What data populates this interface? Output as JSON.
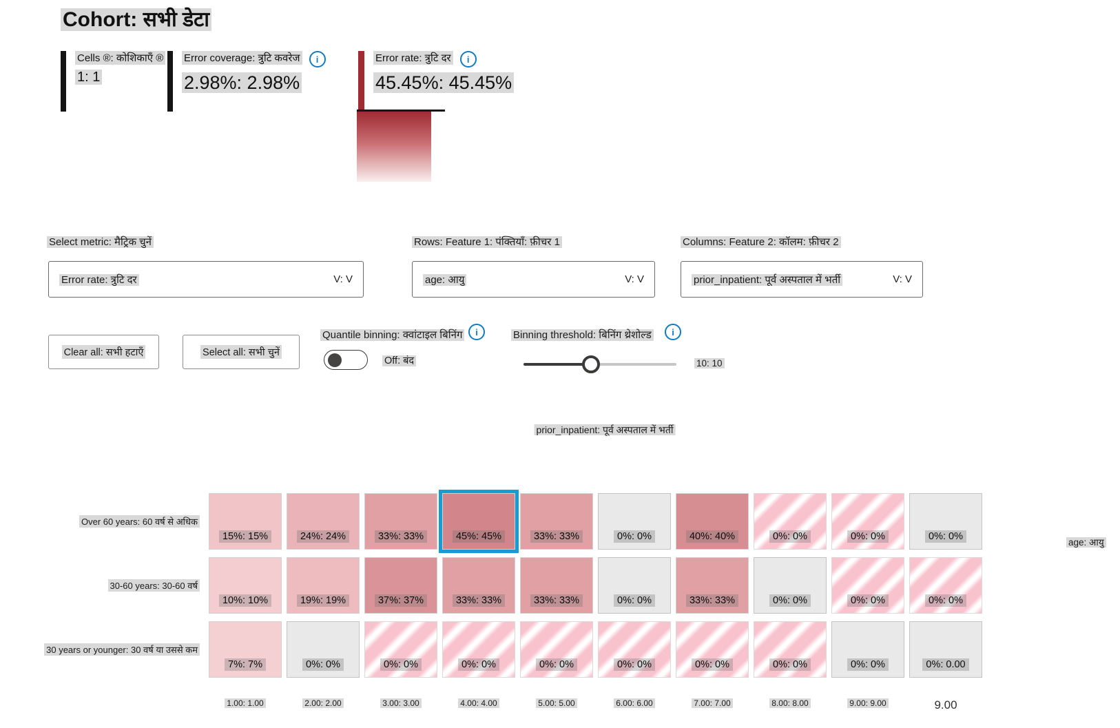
{
  "title": "Cohort: सभी डेटा",
  "colors": {
    "error_red": "#a12b32",
    "selection_blue": "#189ad3",
    "highlight_gray": "#d9d9d9",
    "info_blue": "#0f7bc4",
    "empty_cell": "#e9e9e9"
  },
  "metrics": {
    "cells": {
      "label": "Cells ®: कोशिकाएँ ®",
      "value": "1: 1"
    },
    "coverage": {
      "label": "Error coverage: त्रुटि कवरेज",
      "value": "2.98%: 2.98%"
    },
    "rate": {
      "label": "Error rate: त्रुटि दर",
      "value": "45.45%: 45.45%"
    }
  },
  "controls": {
    "select_metric": {
      "label": "Select metric: मैट्रिक चुनें",
      "value": "Error rate: त्रुटि दर",
      "chevron": "V: V"
    },
    "rows_feature": {
      "label": "Rows: Feature 1: पंक्तियाँ: फ़ीचर 1",
      "value": "age: आयु",
      "chevron": "V: V"
    },
    "cols_feature": {
      "label": "Columns: Feature 2: कॉलम: फ़ीचर 2",
      "value": "prior_inpatient: पूर्व अस्पताल में भर्ती",
      "chevron": "V: V"
    },
    "clear_all": "Clear all: सभी हटाएँ",
    "select_all": "Select all: सभी चुनें",
    "quantile_binning": {
      "label": "Quantile binning: क्वांटाइल बिनिंग",
      "state": "Off: बंद"
    },
    "binning_threshold": {
      "label": "Binning threshold: बिनिंग थ्रेशोल्ड",
      "value": "10: 10"
    }
  },
  "chart_data": {
    "type": "heatmap",
    "x_feature": "prior_inpatient: पूर्व अस्पताल में भर्ती",
    "y_feature": "age: आयु",
    "selected_cell": {
      "row": 0,
      "col": 3
    },
    "col_labels": [
      {
        "text": "1.00: 1.00"
      },
      {
        "text": "2.00: 2.00"
      },
      {
        "text": "3.00: 3.00"
      },
      {
        "text": "4.00: 4.00"
      },
      {
        "text": "5.00: 5.00"
      },
      {
        "text": "6.00: 6.00"
      },
      {
        "text": "7.00: 7.00"
      },
      {
        "text": "8.00: 8.00"
      },
      {
        "text": "9.00: 9.00"
      },
      {
        "text": "9.00",
        "plain": true
      }
    ],
    "rows": [
      {
        "label": "Over 60 years: 60 वर्ष से अधिक",
        "cells": [
          {
            "text": "15%: 15%",
            "value": 15,
            "style": "solid",
            "color": "#f1c5c8"
          },
          {
            "text": "24%: 24%",
            "value": 24,
            "style": "solid",
            "color": "#eab3b7"
          },
          {
            "text": "33%: 33%",
            "value": 33,
            "style": "solid",
            "color": "#e0a0a4"
          },
          {
            "text": "45%: 45%",
            "value": 45,
            "style": "solid",
            "color": "#d2868c",
            "selected": true
          },
          {
            "text": "33%: 33%",
            "value": 33,
            "style": "solid",
            "color": "#e0a0a4"
          },
          {
            "text": "0%: 0%",
            "value": 0,
            "style": "empty"
          },
          {
            "text": "40%: 40%",
            "value": 40,
            "style": "solid",
            "color": "#d78e93"
          },
          {
            "text": "0%: 0%",
            "value": 0,
            "style": "striped"
          },
          {
            "text": "0%: 0%",
            "value": 0,
            "style": "striped"
          },
          {
            "text": "0%: 0%",
            "value": 0,
            "style": "empty"
          }
        ]
      },
      {
        "label": "30-60 years: 30-60 वर्ष",
        "cells": [
          {
            "text": "10%: 10%",
            "value": 10,
            "style": "solid",
            "color": "#f4cdd0"
          },
          {
            "text": "19%: 19%",
            "value": 19,
            "style": "solid",
            "color": "#eebbbe"
          },
          {
            "text": "37%: 37%",
            "value": 37,
            "style": "solid",
            "color": "#da9499"
          },
          {
            "text": "33%: 33%",
            "value": 33,
            "style": "solid",
            "color": "#e0a0a4"
          },
          {
            "text": "33%: 33%",
            "value": 33,
            "style": "solid",
            "color": "#e0a0a4"
          },
          {
            "text": "0%: 0%",
            "value": 0,
            "style": "empty"
          },
          {
            "text": "33%: 33%",
            "value": 33,
            "style": "solid",
            "color": "#e0a0a4"
          },
          {
            "text": "0%: 0%",
            "value": 0,
            "style": "empty"
          },
          {
            "text": "0%: 0%",
            "value": 0,
            "style": "striped"
          },
          {
            "text": "0%: 0%",
            "value": 0,
            "style": "striped"
          }
        ]
      },
      {
        "label": "30 years or younger: 30 वर्ष या उससे कम",
        "cells": [
          {
            "text": "7%: 7%",
            "value": 7,
            "style": "solid",
            "color": "#f4d0d3"
          },
          {
            "text": "0%: 0%",
            "value": 0,
            "style": "empty"
          },
          {
            "text": "0%: 0%",
            "value": 0,
            "style": "striped"
          },
          {
            "text": "0%: 0%",
            "value": 0,
            "style": "striped"
          },
          {
            "text": "0%: 0%",
            "value": 0,
            "style": "striped"
          },
          {
            "text": "0%: 0%",
            "value": 0,
            "style": "striped"
          },
          {
            "text": "0%: 0%",
            "value": 0,
            "style": "striped"
          },
          {
            "text": "0%: 0%",
            "value": 0,
            "style": "striped"
          },
          {
            "text": "0%: 0%",
            "value": 0,
            "style": "empty"
          },
          {
            "text": "0%: 0.00",
            "value": 0,
            "style": "empty"
          }
        ]
      }
    ]
  }
}
